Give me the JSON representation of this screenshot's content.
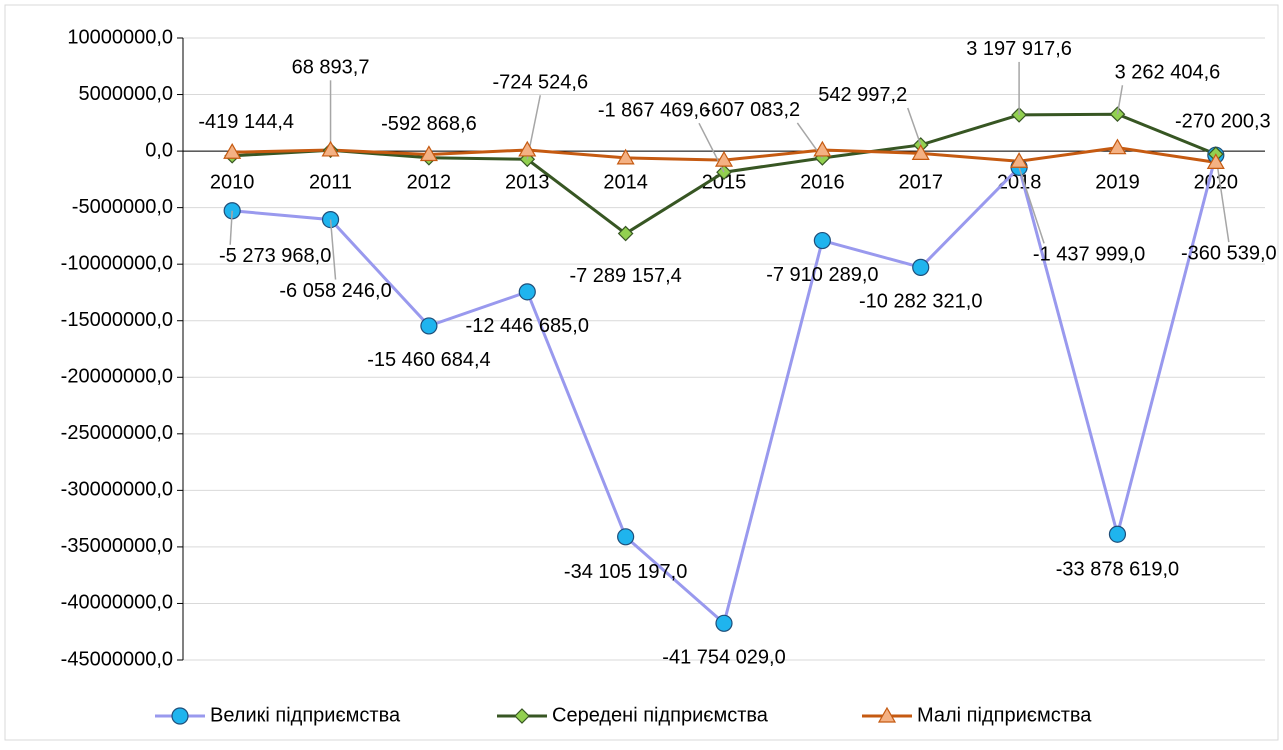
{
  "chart_data": {
    "type": "line",
    "categories": [
      "2010",
      "2011",
      "2012",
      "2013",
      "2014",
      "2015",
      "2016",
      "2017",
      "2018",
      "2019",
      "2020"
    ],
    "series": [
      {
        "name": "Великі підприємства",
        "color": "#9999ee",
        "marker": "circle",
        "marker_color": "#1fb4ee",
        "values": [
          -5273968.0,
          -6058246.0,
          -15460684.4,
          -12446685.0,
          -34105197.0,
          -41754029.0,
          -7910289.0,
          -10282321.0,
          -1437999.0,
          -33878619.0,
          -360539.0
        ],
        "value_labels": [
          "-5 273 968,0",
          "-6 058 246,0",
          "-15 460 684,4",
          "-12 446 685,0",
          "-34 105 197,0",
          "-41 754 029,0",
          "-7 910 289,0",
          "-10 282 321,0",
          "-1 437 999,0",
          "-33 878 619,0",
          "-360 539,0"
        ]
      },
      {
        "name": "Середені підприємства",
        "color": "#375623",
        "marker": "diamond",
        "marker_color": "#92d050",
        "values": [
          -419144.4,
          68893.7,
          -592868.6,
          -724524.6,
          -7289157.4,
          -1867469.6,
          -607083.2,
          542997.2,
          3197917.6,
          3262404.6,
          -270200.3
        ],
        "value_labels": [
          "-419 144,4",
          "68 893,7",
          "-592 868,6",
          "-724 524,6",
          "-7 289 157,4",
          "-1 867 469,6",
          "-607 083,2",
          "542 997,2",
          "3 197 917,6",
          "3 262 404,6",
          "-270 200,3"
        ]
      },
      {
        "name": "Малі підприємства",
        "color": "#c55a11",
        "marker": "triangle",
        "marker_color": "#f4b183",
        "values": [
          -100000,
          100000,
          -300000,
          100000,
          -600000,
          -800000,
          100000,
          -200000,
          -900000,
          300000,
          -1000000
        ]
      }
    ],
    "ylim": [
      -45000000,
      10000000
    ],
    "yticks": [
      {
        "value": -45000000,
        "label": "-45000000,0"
      },
      {
        "value": -40000000,
        "label": "-40000000,0"
      },
      {
        "value": -35000000,
        "label": "-35000000,0"
      },
      {
        "value": -30000000,
        "label": "-30000000,0"
      },
      {
        "value": -25000000,
        "label": "-25000000,0"
      },
      {
        "value": -20000000,
        "label": "-20000000,0"
      },
      {
        "value": -15000000,
        "label": "-15000000,0"
      },
      {
        "value": -10000000,
        "label": "-10000000,0"
      },
      {
        "value": -5000000,
        "label": "-5000000,0"
      },
      {
        "value": 0,
        "label": "0,0"
      },
      {
        "value": 5000000,
        "label": "5000000,0"
      },
      {
        "value": 10000000,
        "label": "10000000,0"
      }
    ],
    "grid": true,
    "legend": "bottom"
  }
}
